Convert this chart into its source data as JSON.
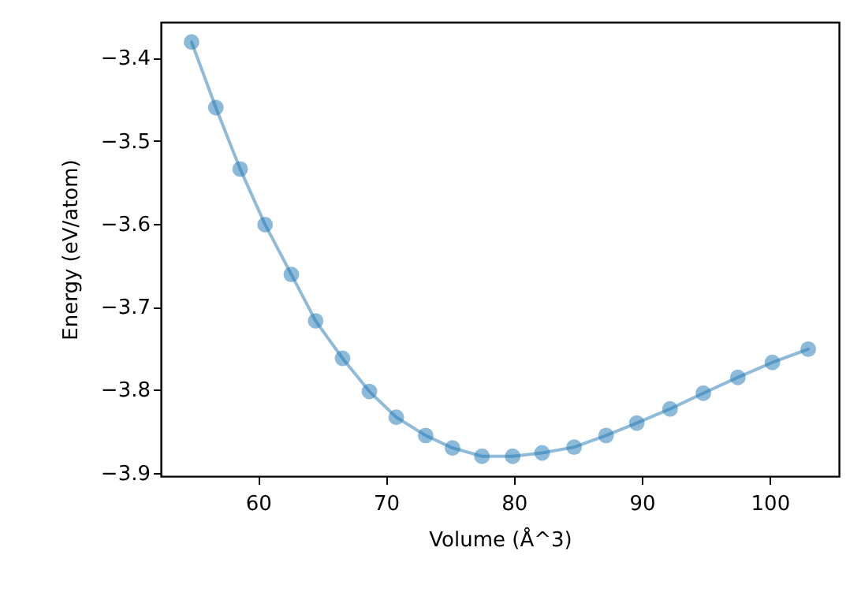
{
  "chart_data": {
    "type": "line",
    "xlabel": "Volume (Å^3)",
    "ylabel": "Energy (eV/atom)",
    "x": [
      54.8,
      56.7,
      58.6,
      60.55,
      62.6,
      64.5,
      66.6,
      68.7,
      70.8,
      73.1,
      75.2,
      77.5,
      79.9,
      82.2,
      84.7,
      87.2,
      89.6,
      92.2,
      94.8,
      97.5,
      100.2,
      103.0
    ],
    "series": [
      {
        "color": "#1f77b4",
        "values": [
          -3.381,
          -3.46,
          -3.534,
          -3.601,
          -3.661,
          -3.717,
          -3.762,
          -3.802,
          -3.833,
          -3.855,
          -3.87,
          -3.88,
          -3.88,
          -3.876,
          -3.869,
          -3.855,
          -3.84,
          -3.823,
          -3.804,
          -3.785,
          -3.767,
          -3.751
        ]
      }
    ],
    "xlim": [
      52.4,
      105.4
    ],
    "ylim": [
      -3.904,
      -3.357
    ],
    "xticks": [
      60,
      70,
      80,
      90,
      100
    ],
    "yticks": [
      {
        "value": -3.9,
        "label": "−3.9"
      },
      {
        "value": -3.8,
        "label": "−3.8"
      },
      {
        "value": -3.7,
        "label": "−3.7"
      },
      {
        "value": -3.6,
        "label": "−3.6"
      },
      {
        "value": -3.5,
        "label": "−3.5"
      },
      {
        "value": -3.4,
        "label": "−3.4"
      }
    ],
    "grid": false,
    "marker": "circle",
    "line_style": "solid"
  }
}
